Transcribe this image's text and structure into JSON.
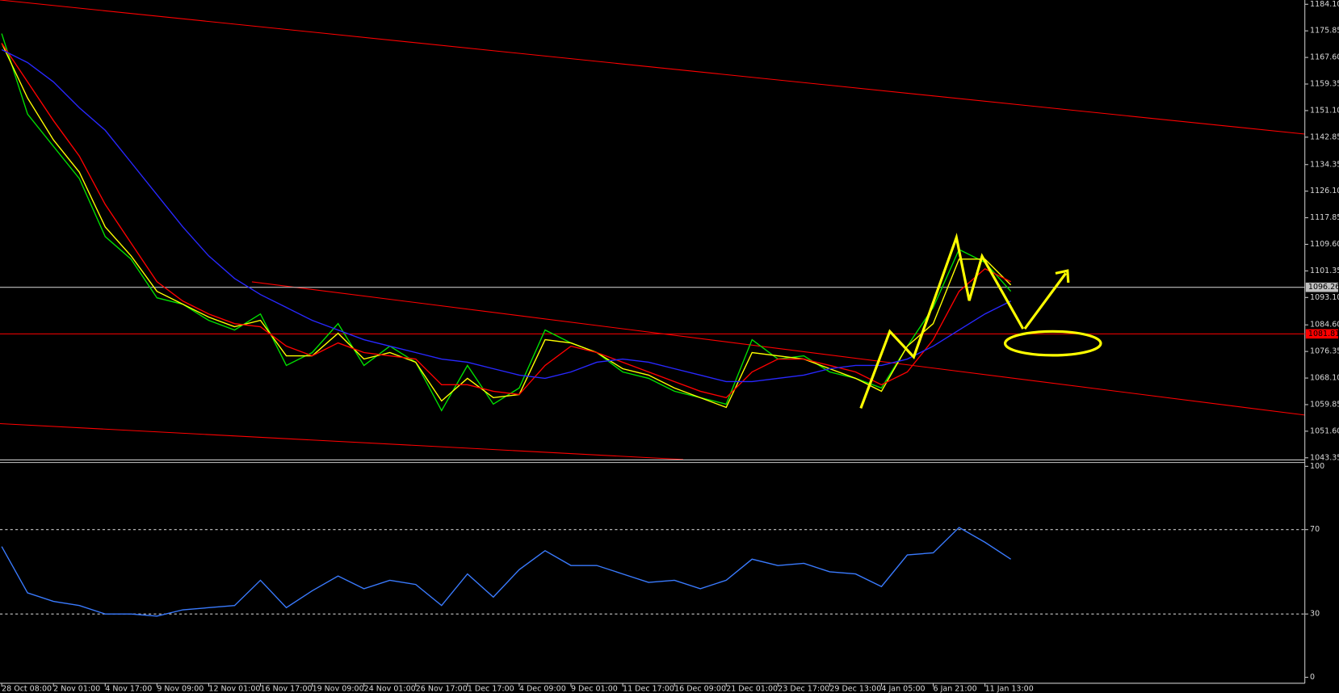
{
  "chart_data": [
    {
      "type": "line",
      "categories": [
        "28 Oct 08:00",
        null,
        "2 Nov 01:00",
        null,
        "4 Nov 17:00",
        null,
        "9 Nov 09:00",
        null,
        "12 Nov 01:00",
        null,
        "16 Nov 17:00",
        null,
        "19 Nov 09:00",
        null,
        "24 Nov 01:00",
        null,
        "26 Nov 17:00",
        null,
        "1 Dec 17:00",
        null,
        "4 Dec 09:00",
        null,
        "9 Dec 01:00",
        null,
        "11 Dec 17:00",
        null,
        "16 Dec 09:00",
        null,
        "21 Dec 01:00",
        null,
        "23 Dec 17:00",
        null,
        "29 Dec 13:00",
        null,
        "4 Jan 05:00",
        null,
        "6 Jan 21:00",
        null,
        "11 Jan 13:00",
        null
      ],
      "series": [
        {
          "color": "#00e000",
          "values": [
            1175,
            1150,
            1140,
            1130,
            1112,
            1105,
            1093,
            1091,
            1086,
            1083,
            1088,
            1072,
            1076,
            1085,
            1072,
            1078,
            1073,
            1058,
            1072,
            1060,
            1065,
            1083,
            1079,
            1076,
            1070,
            1068,
            1064,
            1062,
            1060,
            1080,
            1074,
            1075,
            1070,
            1068,
            1065,
            1078,
            1090,
            1108,
            1104,
            1095
          ]
        },
        {
          "color": "#ffff00",
          "values": [
            1172,
            1155,
            1142,
            1132,
            1115,
            1106,
            1095,
            1091,
            1087,
            1084,
            1086,
            1075,
            1075,
            1082,
            1074,
            1076,
            1073,
            1061,
            1068,
            1062,
            1063,
            1080,
            1079,
            1076,
            1071,
            1069,
            1065,
            1062,
            1059,
            1076,
            1075,
            1074,
            1071,
            1068,
            1064,
            1078,
            1085,
            1105,
            1105,
            1097
          ]
        },
        {
          "color": "#ff0000",
          "values": [
            1172,
            1160,
            1148,
            1137,
            1122,
            1110,
            1098,
            1092,
            1088,
            1085,
            1084,
            1078,
            1075,
            1079,
            1076,
            1075,
            1074,
            1066,
            1066,
            1064,
            1063,
            1072,
            1078,
            1076,
            1073,
            1070,
            1067,
            1064,
            1062,
            1070,
            1074,
            1074,
            1072,
            1070,
            1066,
            1070,
            1080,
            1095,
            1102,
            1098
          ]
        },
        {
          "color": "#2828ff",
          "values": [
            1170,
            1166,
            1160,
            1152,
            1145,
            1135,
            1125,
            1115,
            1106,
            1099,
            1094,
            1090,
            1086,
            1083,
            1080,
            1078,
            1076,
            1074,
            1073,
            1071,
            1069,
            1068,
            1070,
            1073,
            1074,
            1073,
            1071,
            1069,
            1067,
            1067,
            1068,
            1069,
            1071,
            1072,
            1072,
            1074,
            1078,
            1083,
            1088,
            1092
          ]
        }
      ],
      "ylim": [
        1043.35,
        1184.1
      ],
      "yticks": [
        {
          "value": 1184.1,
          "label": "1184.10"
        },
        1175.85,
        {
          "value": 1167.6,
          "label": "1167.60"
        },
        1159.35,
        {
          "value": 1151.1,
          "label": "1151.10"
        },
        1142.85,
        1134.35,
        {
          "value": 1126.1,
          "label": "1126.10"
        },
        1117.85,
        {
          "value": 1109.6,
          "label": "1109.60"
        },
        1101.35,
        {
          "value": 1093.1,
          "label": "1093.10"
        },
        {
          "value": 1084.6,
          "label": "1084.60"
        },
        1076.35,
        {
          "value": 1068.1,
          "label": "1068.10"
        },
        1059.85,
        {
          "value": 1051.6,
          "label": "1051.60"
        },
        1043.35
      ],
      "hlines": [
        {
          "value": 1096.26,
          "color": "#c0c0c0"
        },
        {
          "value": 1081.81,
          "color": "#ff0000"
        }
      ]
    },
    {
      "type": "line",
      "series": [
        {
          "color": "#3a7bff",
          "values": [
            62,
            40,
            36,
            34,
            30,
            30,
            29,
            32,
            33,
            34,
            46,
            33,
            41,
            48,
            42,
            46,
            44,
            34,
            49,
            38,
            51,
            60,
            53,
            53,
            49,
            45,
            46,
            42,
            46,
            56,
            53,
            54,
            50,
            49,
            43,
            58,
            59,
            71,
            64,
            56
          ]
        }
      ],
      "ylim": [
        0,
        100
      ],
      "yticks": [
        0,
        30,
        70,
        100
      ]
    }
  ]
}
